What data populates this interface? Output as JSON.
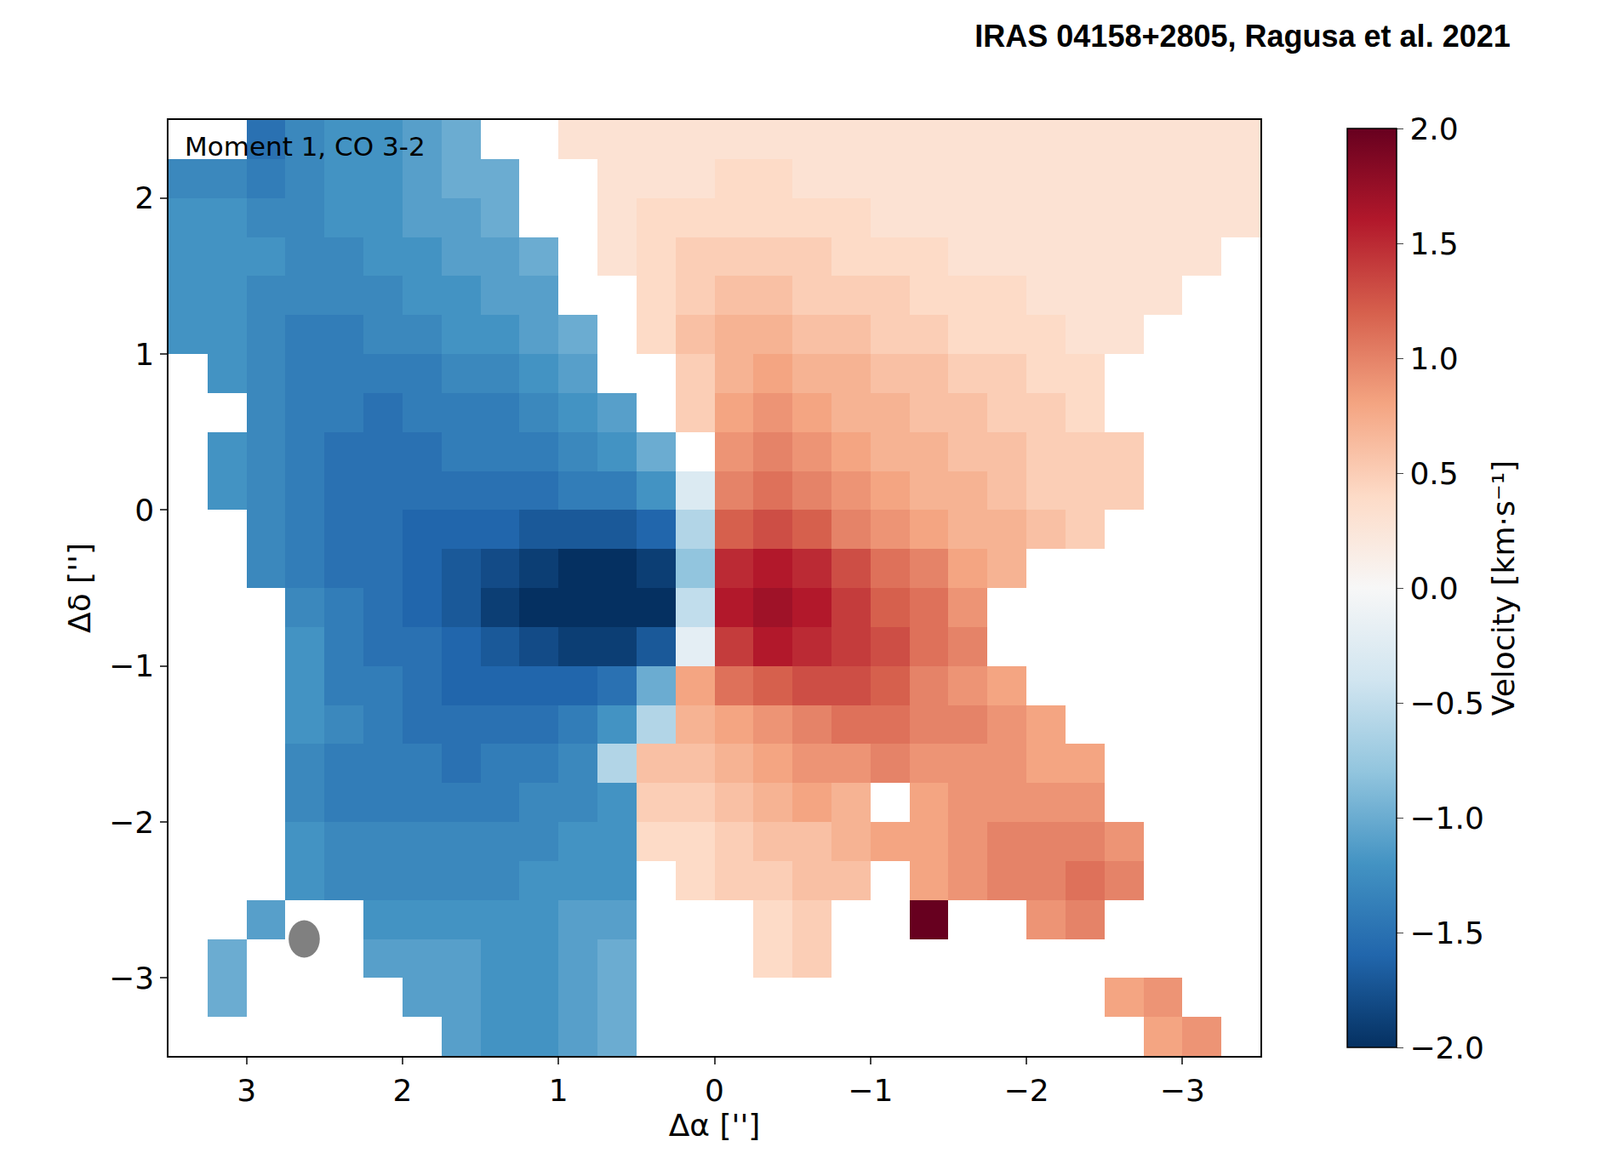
{
  "chart_data": {
    "type": "heatmap",
    "title": "IRAS 04158+2805, Ragusa et al. 2021",
    "annotation": "Moment 1, CO 3-2",
    "x_label": "Δα ['']",
    "y_label": "Δδ ['']",
    "xlim": [
      3.5,
      -3.5
    ],
    "ylim": [
      -3.5,
      2.5
    ],
    "xticks": [
      3,
      2,
      1,
      0,
      {
        "value": -1,
        "label": "−1"
      },
      {
        "value": -2,
        "label": "−2"
      },
      {
        "value": -3,
        "label": "−3"
      }
    ],
    "yticks": [
      {
        "value": -3,
        "label": "−3"
      },
      {
        "value": -2,
        "label": "−2"
      },
      {
        "value": -1,
        "label": "−1"
      },
      0,
      1,
      2
    ],
    "x": [
      3.375,
      3.125,
      2.875,
      2.625,
      2.375,
      2.125,
      1.875,
      1.625,
      1.375,
      1.125,
      0.875,
      0.625,
      0.375,
      0.125,
      -0.125,
      -0.375,
      -0.625,
      -0.875,
      -1.125,
      -1.375,
      -1.625,
      -1.875,
      -2.125,
      -2.375,
      -2.625,
      -2.875,
      -3.125,
      -3.375
    ],
    "y": [
      2.375,
      2.125,
      1.875,
      1.625,
      1.375,
      1.125,
      0.875,
      0.625,
      0.375,
      0.125,
      -0.125,
      -0.375,
      -0.625,
      -0.875,
      -1.125,
      -1.375,
      -1.625,
      -1.875,
      -2.125,
      -2.375,
      -2.625,
      -2.875,
      -3.125,
      -3.375
    ],
    "z": [
      [
        null,
        null,
        -1.5,
        -1.3,
        -1.2,
        -1.2,
        -1.1,
        -1.0,
        null,
        null,
        0.3,
        0.3,
        0.3,
        0.3,
        0.3,
        0.3,
        0.3,
        0.3,
        0.3,
        0.3,
        0.3,
        0.3,
        0.3,
        0.3,
        0.3,
        0.3,
        0.3,
        0.3
      ],
      [
        -1.3,
        -1.3,
        -1.4,
        -1.3,
        -1.2,
        -1.2,
        -1.1,
        -1.0,
        -1.0,
        null,
        null,
        0.3,
        0.3,
        0.3,
        0.4,
        0.4,
        0.3,
        0.3,
        0.3,
        0.3,
        0.3,
        0.3,
        0.3,
        0.3,
        0.3,
        0.3,
        0.3,
        0.3
      ],
      [
        -1.2,
        -1.2,
        -1.3,
        -1.3,
        -1.2,
        -1.2,
        -1.1,
        -1.1,
        -1.0,
        null,
        null,
        0.3,
        0.4,
        0.4,
        0.4,
        0.4,
        0.4,
        0.4,
        0.3,
        0.3,
        0.3,
        0.3,
        0.3,
        0.3,
        0.3,
        0.3,
        0.3,
        0.3
      ],
      [
        -1.2,
        -1.2,
        -1.2,
        -1.3,
        -1.3,
        -1.2,
        -1.2,
        -1.1,
        -1.1,
        -1.0,
        null,
        0.3,
        0.4,
        0.5,
        0.5,
        0.5,
        0.5,
        0.4,
        0.4,
        0.4,
        0.3,
        0.3,
        0.3,
        0.3,
        0.3,
        0.3,
        0.3,
        null
      ],
      [
        -1.2,
        -1.2,
        -1.3,
        -1.3,
        -1.3,
        -1.3,
        -1.2,
        -1.2,
        -1.1,
        -1.1,
        null,
        null,
        0.4,
        0.5,
        0.6,
        0.6,
        0.5,
        0.5,
        0.5,
        0.4,
        0.4,
        0.4,
        0.3,
        0.3,
        0.3,
        0.3,
        null,
        null
      ],
      [
        -1.2,
        -1.2,
        -1.3,
        -1.4,
        -1.4,
        -1.3,
        -1.3,
        -1.2,
        -1.2,
        -1.1,
        -1.0,
        null,
        0.4,
        0.6,
        0.7,
        0.7,
        0.6,
        0.6,
        0.5,
        0.5,
        0.4,
        0.4,
        0.4,
        0.3,
        0.3,
        null,
        null,
        null
      ],
      [
        null,
        -1.2,
        -1.3,
        -1.4,
        -1.4,
        -1.4,
        -1.4,
        -1.3,
        -1.3,
        -1.2,
        -1.1,
        null,
        null,
        0.5,
        0.7,
        0.8,
        0.7,
        0.7,
        0.6,
        0.6,
        0.5,
        0.5,
        0.4,
        0.4,
        null,
        null,
        null,
        null
      ],
      [
        null,
        null,
        -1.3,
        -1.4,
        -1.4,
        -1.5,
        -1.4,
        -1.4,
        -1.4,
        -1.3,
        -1.2,
        -1.1,
        null,
        0.5,
        0.8,
        0.9,
        0.8,
        0.7,
        0.7,
        0.6,
        0.6,
        0.5,
        0.5,
        0.4,
        null,
        null,
        null,
        null
      ],
      [
        null,
        -1.2,
        -1.3,
        -1.4,
        -1.5,
        -1.5,
        -1.5,
        -1.4,
        -1.4,
        -1.4,
        -1.3,
        -1.2,
        -1.0,
        null,
        0.9,
        1.0,
        0.9,
        0.8,
        0.7,
        0.7,
        0.6,
        0.6,
        0.5,
        0.5,
        0.5,
        null,
        null,
        null
      ],
      [
        null,
        -1.2,
        -1.3,
        -1.4,
        -1.5,
        -1.5,
        -1.5,
        -1.5,
        -1.5,
        -1.5,
        -1.4,
        -1.4,
        -1.2,
        -0.3,
        1.0,
        1.1,
        1.0,
        0.9,
        0.8,
        0.7,
        0.7,
        0.6,
        0.5,
        0.5,
        0.5,
        null,
        null,
        null
      ],
      [
        null,
        null,
        -1.3,
        -1.4,
        -1.5,
        -1.5,
        -1.6,
        -1.6,
        -1.6,
        -1.7,
        -1.7,
        -1.7,
        -1.6,
        -0.6,
        1.2,
        1.3,
        1.2,
        1.0,
        0.9,
        0.8,
        0.7,
        0.7,
        0.6,
        0.5,
        null,
        null,
        null,
        null
      ],
      [
        null,
        null,
        -1.3,
        -1.4,
        -1.5,
        -1.5,
        -1.6,
        -1.7,
        -1.8,
        -1.9,
        -2.0,
        -2.0,
        -1.9,
        -0.8,
        1.5,
        1.6,
        1.5,
        1.3,
        1.1,
        1.0,
        0.8,
        0.7,
        null,
        null,
        null,
        null,
        null,
        null
      ],
      [
        null,
        null,
        null,
        -1.3,
        -1.4,
        -1.5,
        -1.6,
        -1.7,
        -1.9,
        -2.0,
        -2.0,
        -2.0,
        -2.0,
        -0.5,
        1.6,
        1.7,
        1.6,
        1.4,
        1.2,
        1.1,
        0.9,
        null,
        null,
        null,
        null,
        null,
        null,
        null
      ],
      [
        null,
        null,
        null,
        -1.2,
        -1.4,
        -1.5,
        -1.5,
        -1.6,
        -1.7,
        -1.8,
        -1.9,
        -1.9,
        -1.7,
        -0.2,
        1.4,
        1.6,
        1.5,
        1.4,
        1.3,
        1.1,
        1.0,
        null,
        null,
        null,
        null,
        null,
        null,
        null
      ],
      [
        null,
        null,
        null,
        -1.2,
        -1.4,
        -1.4,
        -1.5,
        -1.6,
        -1.6,
        -1.6,
        -1.6,
        -1.5,
        -1.0,
        0.8,
        1.1,
        1.2,
        1.3,
        1.3,
        1.2,
        1.0,
        0.9,
        0.8,
        null,
        null,
        null,
        null,
        null,
        null
      ],
      [
        null,
        null,
        null,
        -1.2,
        -1.3,
        -1.4,
        -1.5,
        -1.5,
        -1.5,
        -1.5,
        -1.4,
        -1.2,
        -0.6,
        0.7,
        0.8,
        0.9,
        1.0,
        1.1,
        1.1,
        1.0,
        1.0,
        0.9,
        0.8,
        null,
        null,
        null,
        null,
        null
      ],
      [
        null,
        null,
        null,
        -1.3,
        -1.4,
        -1.4,
        -1.4,
        -1.5,
        -1.4,
        -1.4,
        -1.3,
        -0.6,
        0.6,
        0.6,
        0.7,
        0.8,
        0.9,
        0.9,
        1.0,
        0.9,
        0.9,
        0.9,
        0.8,
        0.8,
        null,
        null,
        null,
        null
      ],
      [
        null,
        null,
        null,
        -1.3,
        -1.4,
        -1.4,
        -1.4,
        -1.4,
        -1.4,
        -1.3,
        -1.3,
        -1.2,
        0.5,
        0.5,
        0.6,
        0.7,
        0.8,
        0.7,
        null,
        0.8,
        0.9,
        0.9,
        0.9,
        0.9,
        null,
        null,
        null,
        null
      ],
      [
        null,
        null,
        null,
        -1.2,
        -1.3,
        -1.3,
        -1.3,
        -1.3,
        -1.3,
        -1.3,
        -1.2,
        -1.2,
        0.4,
        0.4,
        0.5,
        0.6,
        0.6,
        0.7,
        0.8,
        0.8,
        0.9,
        1.0,
        1.0,
        1.0,
        0.9,
        null,
        null,
        null
      ],
      [
        null,
        null,
        null,
        -1.2,
        -1.3,
        -1.3,
        -1.3,
        -1.3,
        -1.3,
        -1.2,
        -1.2,
        -1.2,
        null,
        0.4,
        0.5,
        0.5,
        0.6,
        0.6,
        null,
        0.8,
        0.9,
        1.0,
        1.0,
        1.1,
        1.0,
        null,
        null,
        null
      ],
      [
        null,
        null,
        -1.1,
        null,
        null,
        -1.2,
        -1.2,
        -1.2,
        -1.2,
        -1.2,
        -1.1,
        -1.1,
        null,
        null,
        null,
        0.4,
        0.5,
        null,
        null,
        2.0,
        null,
        null,
        0.9,
        1.0,
        null,
        null,
        null,
        null
      ],
      [
        null,
        -1.0,
        null,
        null,
        null,
        -1.1,
        -1.1,
        -1.1,
        -1.2,
        -1.2,
        -1.1,
        -1.0,
        null,
        null,
        null,
        0.4,
        0.5,
        null,
        null,
        null,
        null,
        null,
        null,
        null,
        null,
        null,
        null,
        null
      ],
      [
        null,
        -1.0,
        null,
        null,
        null,
        null,
        -1.1,
        -1.1,
        -1.2,
        -1.2,
        -1.1,
        -1.0,
        null,
        null,
        null,
        null,
        null,
        null,
        null,
        null,
        null,
        null,
        null,
        null,
        0.8,
        0.9,
        null,
        null
      ],
      [
        null,
        null,
        null,
        null,
        null,
        null,
        null,
        -1.1,
        -1.2,
        -1.2,
        -1.1,
        -1.0,
        null,
        null,
        null,
        null,
        null,
        null,
        null,
        null,
        null,
        null,
        null,
        null,
        null,
        0.8,
        0.9,
        null
      ]
    ],
    "colorbar": {
      "title": "Velocity [km·s⁻¹]",
      "range": [
        -2,
        2
      ],
      "ticks": [
        {
          "value": -2,
          "label": "−2.0"
        },
        {
          "value": -1.5,
          "label": "−1.5"
        },
        {
          "value": -1,
          "label": "−1.0"
        },
        {
          "value": -0.5,
          "label": "−0.5"
        },
        {
          "value": 0,
          "label": "0.0"
        },
        {
          "value": 0.5,
          "label": "0.5"
        },
        {
          "value": 1,
          "label": "1.0"
        },
        {
          "value": 1.5,
          "label": "1.5"
        },
        {
          "value": 2,
          "label": "2.0"
        }
      ]
    },
    "beam": {
      "x": 2.63,
      "y": -2.75,
      "width": 0.2,
      "height": 0.24
    }
  }
}
